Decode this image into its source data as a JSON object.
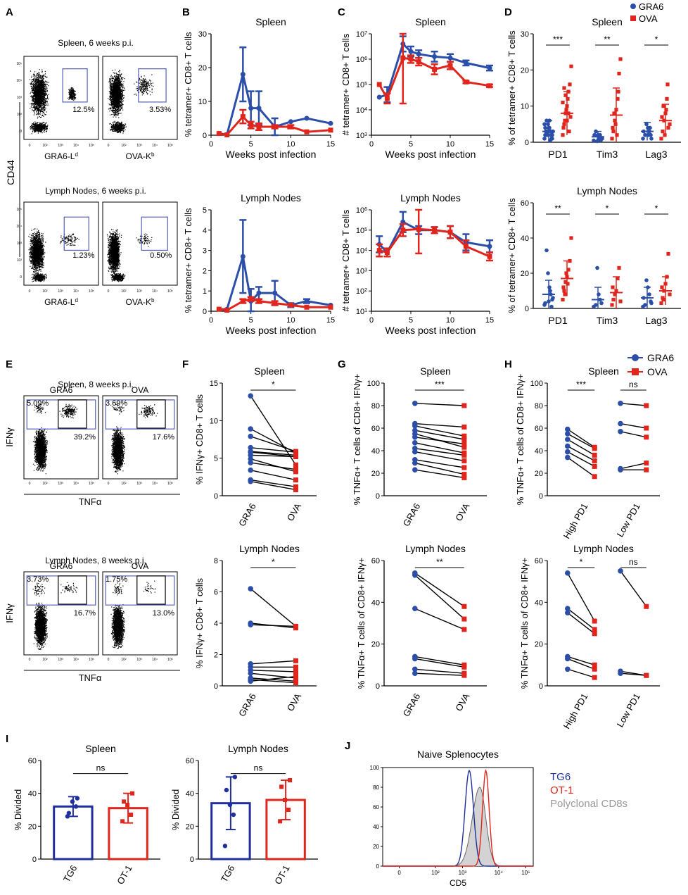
{
  "colors": {
    "gra6": "#2b4ea8",
    "ova": "#e0251d",
    "tg6": "#1f2f9e",
    "ot1": "#e0251d",
    "poly": "#999999",
    "gate": "#5560b8"
  },
  "panels": {
    "A": "A",
    "B": "B",
    "C": "C",
    "D": "D",
    "E": "E",
    "F": "F",
    "G": "G",
    "H": "H",
    "I": "I",
    "J": "J"
  },
  "legend_top": {
    "gra6": "GRA6",
    "ova": "OVA"
  },
  "legend_mid": {
    "gra6": "GRA6",
    "ova": "OVA"
  },
  "panelA": {
    "spleen_title": "Spleen, 6 weeks p.i.",
    "ln_title": "Lymph Nodes, 6 weeks p.i.",
    "ylabel": "CD44",
    "plots": [
      {
        "pct": "12.5%",
        "xlabel": "GRA6-Ld"
      },
      {
        "pct": "3.53%",
        "xlabel": "OVA-Kb"
      },
      {
        "pct": "1.23%",
        "xlabel": "GRA6-Ld"
      },
      {
        "pct": "0.50%",
        "xlabel": "OVA-Kb"
      }
    ]
  },
  "panelE": {
    "spleen_title": "Spleen, 8 weeks p.i.",
    "ln_title": "Lymph Nodes, 8 weeks p.i.",
    "ylabel": "IFNγ",
    "xlabel": "TNFα",
    "plots": [
      {
        "label": "GRA6",
        "pct_left": "5.09%",
        "pct_right": "39.2%"
      },
      {
        "label": "OVA",
        "pct_left": "3.69%",
        "pct_right": "17.6%"
      },
      {
        "label": "GRA6",
        "pct_left": "3.73%",
        "pct_right": "16.7%"
      },
      {
        "label": "OVA",
        "pct_left": "1.75%",
        "pct_right": "13.0%"
      }
    ]
  },
  "chart_data": [
    {
      "id": "B1",
      "type": "line",
      "title": "Spleen",
      "xlabel": "Weeks post infection",
      "ylabel": "% tetramer+ CD8+ T cells",
      "xlim": [
        0,
        15
      ],
      "ylim": [
        0,
        30
      ],
      "series": [
        {
          "name": "GRA6",
          "x": [
            1,
            2,
            4,
            5,
            6,
            8,
            10,
            12,
            15
          ],
          "y": [
            0.5,
            0.2,
            18,
            8,
            8,
            2.5,
            4,
            5,
            3.5
          ],
          "err": [
            0,
            0,
            8,
            5,
            5,
            2.5,
            0,
            0,
            0
          ]
        },
        {
          "name": "OVA",
          "x": [
            1,
            2,
            4,
            5,
            6,
            8,
            10,
            12,
            15
          ],
          "y": [
            0.5,
            0.1,
            5.5,
            3,
            2.5,
            2.5,
            2.5,
            1,
            1.5
          ],
          "err": [
            0,
            0,
            2,
            1,
            1,
            0.5,
            0.5,
            0,
            0
          ]
        }
      ]
    },
    {
      "id": "B2",
      "type": "line",
      "title": "Lymph Nodes",
      "xlabel": "Weeks post infection",
      "ylabel": "% tetramer+ CD8+ T cells",
      "xlim": [
        0,
        15
      ],
      "ylim": [
        0,
        5
      ],
      "series": [
        {
          "name": "GRA6",
          "x": [
            1,
            2,
            4,
            5,
            6,
            8,
            10,
            12,
            15
          ],
          "y": [
            0.1,
            0.1,
            2.7,
            0.5,
            0.9,
            0.9,
            0.3,
            0.5,
            0.3
          ],
          "err": [
            0,
            0,
            1.8,
            0.6,
            0.3,
            0.6,
            0.1,
            0.1,
            0
          ]
        },
        {
          "name": "OVA",
          "x": [
            1,
            2,
            4,
            5,
            6,
            8,
            10,
            12,
            15
          ],
          "y": [
            0.1,
            0.05,
            0.5,
            0.6,
            0.5,
            0.4,
            0.3,
            0.2,
            0.2
          ],
          "err": [
            0,
            0,
            0.1,
            0.1,
            0.1,
            0.1,
            0,
            0,
            0
          ]
        }
      ]
    },
    {
      "id": "C1",
      "type": "line",
      "title": "Spleen",
      "xlabel": "Weeks post infection",
      "ylabel": "# tetramer+ CD8+ T cells",
      "log": true,
      "xlim": [
        0,
        15
      ],
      "ylim": [
        3,
        7
      ],
      "series": [
        {
          "name": "GRA6",
          "x": [
            1,
            2,
            4,
            5,
            6,
            8,
            10,
            12,
            15
          ],
          "y": [
            4.5,
            4.6,
            6.6,
            6.3,
            6.2,
            6.1,
            6.05,
            5.85,
            5.65
          ],
          "err": [
            0,
            0.3,
            0.3,
            0.2,
            0.15,
            0.2,
            0.15,
            0.1,
            0.1
          ]
        },
        {
          "name": "OVA",
          "x": [
            1,
            2,
            4,
            5,
            6,
            8,
            10,
            12,
            15
          ],
          "y": [
            5.0,
            4.45,
            6.05,
            6.0,
            5.9,
            5.6,
            5.75,
            5.1,
            4.95
          ],
          "err": [
            0,
            0.2,
            1.8,
            0.15,
            0.15,
            0.2,
            0.15,
            0.05,
            0.05
          ]
        }
      ]
    },
    {
      "id": "C2",
      "type": "line",
      "title": "Lymph Nodes",
      "xlabel": "Weeks post infection",
      "ylabel": "# tetramer+ CD8+ T cells",
      "log": true,
      "xlim": [
        0,
        15
      ],
      "ylim": [
        1,
        6
      ],
      "series": [
        {
          "name": "GRA6",
          "x": [
            1,
            2,
            4,
            6,
            8,
            10,
            12,
            15
          ],
          "y": [
            4.3,
            3.9,
            5.4,
            5.0,
            5.0,
            4.9,
            4.4,
            4.2
          ],
          "err": [
            0.4,
            0.2,
            0.5,
            0.2,
            0.15,
            0.3,
            0.4,
            0.3
          ]
        },
        {
          "name": "OVA",
          "x": [
            1,
            2,
            4,
            6,
            8,
            10,
            12,
            15
          ],
          "y": [
            4.0,
            3.9,
            5.0,
            5.05,
            5.0,
            4.9,
            4.2,
            3.7
          ],
          "err": [
            0.3,
            0.2,
            0.3,
            1.2,
            0.15,
            0.3,
            0.3,
            0.2
          ]
        }
      ]
    },
    {
      "id": "D1",
      "type": "scatter",
      "title": "Spleen",
      "ylabel": "% of tetramer+ CD8+ T cells",
      "ylim": [
        0,
        30
      ],
      "yticks": [
        0,
        10,
        20,
        30
      ],
      "categories": [
        "PD1",
        "Tim3",
        "Lag3"
      ],
      "significance": [
        "***",
        "**",
        "*"
      ],
      "gra6_mean": [
        3,
        1.5,
        3
      ],
      "gra6_sd": [
        3,
        1.5,
        2.5
      ],
      "ova_mean": [
        8,
        7.5,
        6
      ],
      "ova_sd": [
        6,
        7.5,
        4.5
      ],
      "gra6_points": [
        [
          1,
          2,
          3,
          4,
          5,
          6,
          2,
          3,
          1,
          0.5,
          4,
          2,
          3,
          5,
          1,
          2,
          6,
          3,
          2,
          4
        ],
        [
          0.5,
          1,
          2,
          1,
          0.3,
          3,
          2,
          1,
          0.5,
          1.5,
          2
        ],
        [
          1,
          2,
          3,
          4,
          5,
          2,
          3,
          1,
          4,
          2
        ]
      ],
      "ova_points": [
        [
          2,
          5,
          8,
          10,
          14,
          16,
          21,
          4,
          6,
          9,
          12,
          3,
          7,
          11,
          15,
          13,
          6,
          8
        ],
        [
          1,
          3,
          6,
          9,
          12,
          19,
          23,
          4,
          8,
          5,
          2,
          14
        ],
        [
          1,
          3,
          6,
          8,
          12,
          4,
          5,
          7,
          10,
          2,
          9,
          16
        ]
      ]
    },
    {
      "id": "D2",
      "type": "scatter",
      "title": "Lymph Nodes",
      "ylabel": "% of tetramer+ CD8+ T cells",
      "ylim": [
        0,
        60
      ],
      "yticks": [
        0,
        20,
        40,
        60
      ],
      "categories": [
        "PD1",
        "Tim3",
        "Lag3"
      ],
      "significance": [
        "**",
        "*",
        "*"
      ],
      "gra6_mean": [
        8,
        5,
        6
      ],
      "gra6_sd": [
        8,
        7,
        6
      ],
      "ova_mean": [
        17,
        9,
        10
      ],
      "ova_sd": [
        10,
        9,
        8
      ],
      "gra6_points": [
        [
          2,
          5,
          8,
          12,
          20,
          33,
          3,
          6,
          1,
          10,
          4
        ],
        [
          1,
          3,
          5,
          8,
          23,
          2
        ],
        [
          1,
          4,
          8,
          12,
          16,
          2,
          6,
          3
        ]
      ],
      "ova_points": [
        [
          5,
          10,
          15,
          18,
          22,
          27,
          40,
          12,
          8,
          20,
          14
        ],
        [
          2,
          5,
          8,
          10,
          17,
          23,
          4,
          12
        ],
        [
          3,
          6,
          10,
          14,
          18,
          31,
          8,
          12,
          5
        ]
      ]
    },
    {
      "id": "F1",
      "type": "paired",
      "title": "Spleen",
      "ylabel": "% IFNγ+ CD8+ T cells",
      "ylim": [
        0,
        15
      ],
      "yticks": [
        0,
        5,
        10,
        15
      ],
      "categories": [
        "GRA6",
        "OVA"
      ],
      "significance": "*",
      "pairs": [
        [
          13.3,
          4.1
        ],
        [
          8.9,
          5.7
        ],
        [
          7.9,
          5.9
        ],
        [
          6.4,
          5.8
        ],
        [
          5.9,
          5.4
        ],
        [
          5.4,
          5.2
        ],
        [
          4.9,
          3.2
        ],
        [
          4.4,
          3.5
        ],
        [
          3.4,
          2.1
        ],
        [
          2.1,
          1.2
        ],
        [
          1.9,
          0.8
        ],
        [
          5.8,
          5.2
        ]
      ]
    },
    {
      "id": "F2",
      "type": "paired",
      "title": "Lymph Nodes",
      "ylabel": "% IFNγ+ CD8+ T cells",
      "ylim": [
        0,
        8
      ],
      "yticks": [
        0,
        2,
        4,
        6,
        8
      ],
      "categories": [
        "GRA6",
        "OVA"
      ],
      "significance": "*",
      "pairs": [
        [
          6.2,
          3.8
        ],
        [
          4.0,
          3.7
        ],
        [
          3.9,
          3.8
        ],
        [
          1.4,
          1.6
        ],
        [
          1.2,
          1.2
        ],
        [
          1.0,
          0.9
        ],
        [
          0.8,
          0.5
        ],
        [
          0.5,
          0.3
        ],
        [
          0.4,
          0.2
        ],
        [
          0.3,
          0.6
        ]
      ]
    },
    {
      "id": "G1",
      "type": "paired",
      "title": "Spleen",
      "ylabel": "% TNFα+ T cells of CD8+ IFNγ+",
      "ylim": [
        0,
        100
      ],
      "yticks": [
        0,
        20,
        40,
        60,
        80,
        100
      ],
      "categories": [
        "GRA6",
        "OVA"
      ],
      "significance": "***",
      "pairs": [
        [
          82,
          80
        ],
        [
          64,
          61
        ],
        [
          62,
          53
        ],
        [
          58,
          50
        ],
        [
          55,
          43
        ],
        [
          52,
          46
        ],
        [
          47,
          38
        ],
        [
          42,
          36
        ],
        [
          39,
          31
        ],
        [
          32,
          25
        ],
        [
          29,
          19
        ],
        [
          23,
          16
        ]
      ]
    },
    {
      "id": "G2",
      "type": "paired",
      "title": "Lymph Nodes",
      "ylabel": "% TNFα+ T cells of CD8+ IFNγ+",
      "ylim": [
        0,
        60
      ],
      "yticks": [
        0,
        20,
        40,
        60
      ],
      "categories": [
        "GRA6",
        "OVA"
      ],
      "significance": "**",
      "pairs": [
        [
          54,
          38
        ],
        [
          53,
          32
        ],
        [
          37,
          27
        ],
        [
          14,
          10
        ],
        [
          13,
          9
        ],
        [
          8,
          6
        ],
        [
          6,
          5
        ]
      ]
    },
    {
      "id": "H1",
      "type": "paired",
      "title": "Spleen",
      "ylabel": "% TNFα+ T cells of CD8+ IFNγ+",
      "ylim": [
        0,
        100
      ],
      "yticks": [
        0,
        20,
        40,
        60,
        80,
        100
      ],
      "categories": [
        "High PD1",
        "Low PD1"
      ],
      "significance": [
        "***",
        "ns"
      ],
      "pairs_high": [
        [
          59,
          43
        ],
        [
          55,
          42
        ],
        [
          50,
          36
        ],
        [
          44,
          31
        ],
        [
          39,
          26
        ],
        [
          34,
          17
        ]
      ],
      "pairs_low": [
        [
          82,
          80
        ],
        [
          64,
          60
        ],
        [
          57,
          52
        ],
        [
          24,
          29
        ],
        [
          23,
          23
        ]
      ]
    },
    {
      "id": "H2",
      "type": "paired",
      "title": "Lymph Nodes",
      "ylabel": "% TNFα+ T cells of CD8+ IFNγ+",
      "ylim": [
        0,
        60
      ],
      "yticks": [
        0,
        20,
        40,
        60
      ],
      "categories": [
        "High PD1",
        "Low PD1"
      ],
      "significance": [
        "*",
        "ns"
      ],
      "pairs_high": [
        [
          54,
          31
        ],
        [
          37,
          27
        ],
        [
          35,
          25
        ],
        [
          14,
          10
        ],
        [
          13,
          8
        ],
        [
          8,
          4
        ]
      ],
      "pairs_low": [
        [
          55,
          38
        ],
        [
          7,
          5
        ],
        [
          6,
          5
        ]
      ]
    },
    {
      "id": "I1",
      "type": "bar",
      "title": "Spleen",
      "ylabel": "% Divided",
      "ylim": [
        0,
        60
      ],
      "yticks": [
        0,
        20,
        40,
        60
      ],
      "categories": [
        "TG6",
        "OT-1"
      ],
      "values": [
        32,
        31
      ],
      "err": [
        6,
        9
      ],
      "significance": "ns",
      "points": [
        [
          26,
          32,
          35,
          28,
          37
        ],
        [
          23,
          27,
          33,
          35,
          40
        ]
      ]
    },
    {
      "id": "I2",
      "type": "bar",
      "title": "Lymph Nodes",
      "ylabel": "% Divided",
      "ylim": [
        0,
        60
      ],
      "yticks": [
        0,
        20,
        40,
        60
      ],
      "categories": [
        "TG6",
        "OT-1"
      ],
      "values": [
        34,
        36
      ],
      "err": [
        16,
        12
      ],
      "significance": "ns",
      "points": [
        [
          8,
          27,
          33,
          42,
          50
        ],
        [
          23,
          30,
          36,
          44,
          48
        ]
      ]
    },
    {
      "id": "J",
      "type": "area",
      "title": "Naive Splenocytes",
      "xlabel": "CD5",
      "ylim": [
        0,
        100
      ],
      "yticks": [
        0,
        20,
        40,
        60,
        80,
        100
      ],
      "xticklabels": [
        "0",
        "10²",
        "10³",
        "10⁴",
        "10⁵"
      ],
      "series": [
        {
          "name": "TG6",
          "peak": "10³"
        },
        {
          "name": "OT-1",
          "peak": "4×10³"
        },
        {
          "name": "Polyclonal CD8s",
          "peak": "3×10³"
        }
      ]
    }
  ]
}
